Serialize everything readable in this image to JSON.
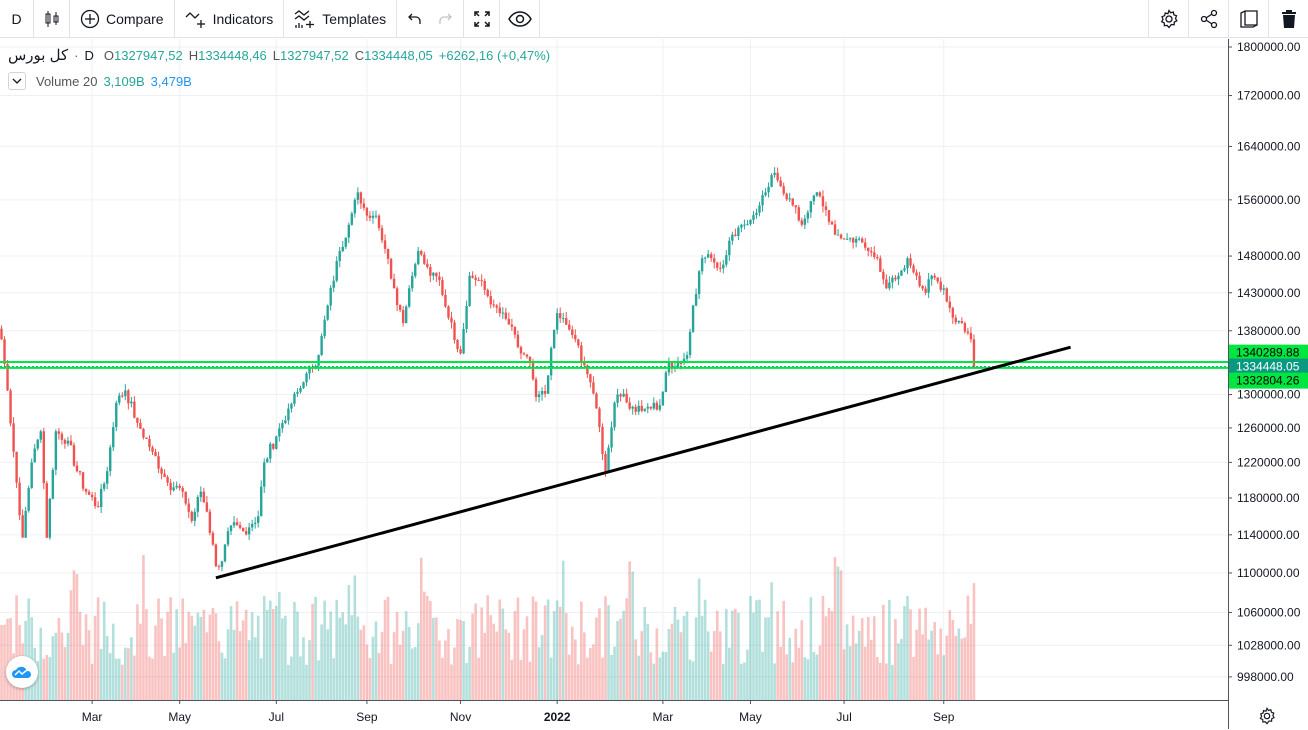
{
  "toolbar": {
    "interval": "D",
    "compare": "Compare",
    "indicators": "Indicators",
    "templates": "Templates"
  },
  "legend": {
    "symbol": "کل بورس",
    "sep": "·",
    "interval": "D",
    "o_label": "O",
    "o": "1327947,52",
    "h_label": "H",
    "h": "1334448,46",
    "l_label": "L",
    "l": "1327947,52",
    "c_label": "C",
    "c": "1334448,05",
    "change": "+6262,16 (+0,47%)"
  },
  "volume": {
    "label": "Volume 20",
    "v1": "3,109B",
    "v2": "3,479B"
  },
  "colors": {
    "up": "#26a69a",
    "down": "#ef5350",
    "level": "#00e640",
    "last": "#089981"
  },
  "chart_data": {
    "type": "candlestick",
    "y_scale": "log",
    "ylim": [
      998000,
      1800000
    ],
    "y_ticks": [
      1800000,
      1720000,
      1640000,
      1560000,
      1480000,
      1430000,
      1380000,
      1300000,
      1260000,
      1220000,
      1180000,
      1140000,
      1100000,
      1060000,
      1028000,
      998000
    ],
    "y_tick_labels": [
      "1800000.00",
      "1720000.00",
      "1640000.00",
      "1560000.00",
      "1480000.00",
      "1430000.00",
      "1380000.00",
      "1300000.00",
      "1260000.00",
      "1220000.00",
      "1180000.00",
      "1140000.00",
      "1100000.00",
      "1060000.00",
      "1028000.00",
      "998000.00"
    ],
    "x_ticks": [
      {
        "t": 30,
        "label": "Mar"
      },
      {
        "t": 59,
        "label": "May"
      },
      {
        "t": 91,
        "label": "Jul"
      },
      {
        "t": 121,
        "label": "Sep"
      },
      {
        "t": 152,
        "label": "Nov"
      },
      {
        "t": 184,
        "label": "2022"
      },
      {
        "t": 219,
        "label": "Mar"
      },
      {
        "t": 248,
        "label": "May"
      },
      {
        "t": 279,
        "label": "Jul"
      },
      {
        "t": 312,
        "label": "Sep"
      }
    ],
    "close_path": [
      [
        0,
        1369000
      ],
      [
        2,
        1305000
      ],
      [
        5,
        1197000
      ],
      [
        7,
        1137000
      ],
      [
        10,
        1220000
      ],
      [
        13,
        1256000
      ],
      [
        15,
        1137000
      ],
      [
        18,
        1256000
      ],
      [
        22,
        1245000
      ],
      [
        25,
        1210000
      ],
      [
        28,
        1187000
      ],
      [
        32,
        1170000
      ],
      [
        35,
        1210000
      ],
      [
        38,
        1290000
      ],
      [
        41,
        1305000
      ],
      [
        45,
        1266000
      ],
      [
        50,
        1232000
      ],
      [
        55,
        1197000
      ],
      [
        60,
        1187000
      ],
      [
        63,
        1155000
      ],
      [
        66,
        1187000
      ],
      [
        68,
        1165000
      ],
      [
        71,
        1107000
      ],
      [
        73,
        1112000
      ],
      [
        76,
        1150000
      ],
      [
        80,
        1144000
      ],
      [
        85,
        1160000
      ],
      [
        87,
        1220000
      ],
      [
        91,
        1250000
      ],
      [
        95,
        1283000
      ],
      [
        100,
        1315000
      ],
      [
        105,
        1349000
      ],
      [
        108,
        1413000
      ],
      [
        112,
        1487000
      ],
      [
        115,
        1524000
      ],
      [
        118,
        1571000
      ],
      [
        121,
        1537000
      ],
      [
        124,
        1537000
      ],
      [
        127,
        1490000
      ],
      [
        130,
        1436000
      ],
      [
        133,
        1390000
      ],
      [
        135,
        1436000
      ],
      [
        138,
        1487000
      ],
      [
        142,
        1453000
      ],
      [
        145,
        1447000
      ],
      [
        148,
        1397000
      ],
      [
        152,
        1351000
      ],
      [
        155,
        1453000
      ],
      [
        158,
        1447000
      ],
      [
        163,
        1413000
      ],
      [
        168,
        1388000
      ],
      [
        172,
        1351000
      ],
      [
        175,
        1339000
      ],
      [
        177,
        1297000
      ],
      [
        180,
        1301000
      ],
      [
        182,
        1358000
      ],
      [
        184,
        1403000
      ],
      [
        187,
        1388000
      ],
      [
        190,
        1369000
      ],
      [
        193,
        1336000
      ],
      [
        195,
        1315000
      ],
      [
        197,
        1283000
      ],
      [
        200,
        1210000
      ],
      [
        203,
        1290000
      ],
      [
        206,
        1301000
      ],
      [
        208,
        1283000
      ],
      [
        213,
        1283000
      ],
      [
        218,
        1287000
      ],
      [
        221,
        1339000
      ],
      [
        224,
        1339000
      ],
      [
        227,
        1349000
      ],
      [
        229,
        1413000
      ],
      [
        232,
        1477000
      ],
      [
        235,
        1477000
      ],
      [
        238,
        1463000
      ],
      [
        242,
        1510000
      ],
      [
        245,
        1524000
      ],
      [
        248,
        1531000
      ],
      [
        251,
        1552000
      ],
      [
        253,
        1571000
      ],
      [
        256,
        1600000
      ],
      [
        258,
        1580000
      ],
      [
        262,
        1552000
      ],
      [
        265,
        1524000
      ],
      [
        268,
        1558000
      ],
      [
        270,
        1571000
      ],
      [
        273,
        1545000
      ],
      [
        276,
        1510000
      ],
      [
        280,
        1504000
      ],
      [
        283,
        1504000
      ],
      [
        287,
        1487000
      ],
      [
        290,
        1477000
      ],
      [
        293,
        1436000
      ],
      [
        297,
        1453000
      ],
      [
        300,
        1477000
      ],
      [
        303,
        1453000
      ],
      [
        306,
        1430000
      ],
      [
        308,
        1453000
      ],
      [
        312,
        1436000
      ],
      [
        315,
        1397000
      ],
      [
        318,
        1390000
      ],
      [
        321,
        1369000
      ],
      [
        322,
        1334448
      ]
    ],
    "trendline": [
      [
        71,
        1095000
      ],
      [
        354,
        1359000
      ]
    ],
    "levels": [
      {
        "value": 1340289.88,
        "label": "1340289.88"
      },
      {
        "value": 1334448.05,
        "label": "1334448.05",
        "last": true
      },
      {
        "value": 1332804.26,
        "label": "1332804.26"
      }
    ]
  }
}
